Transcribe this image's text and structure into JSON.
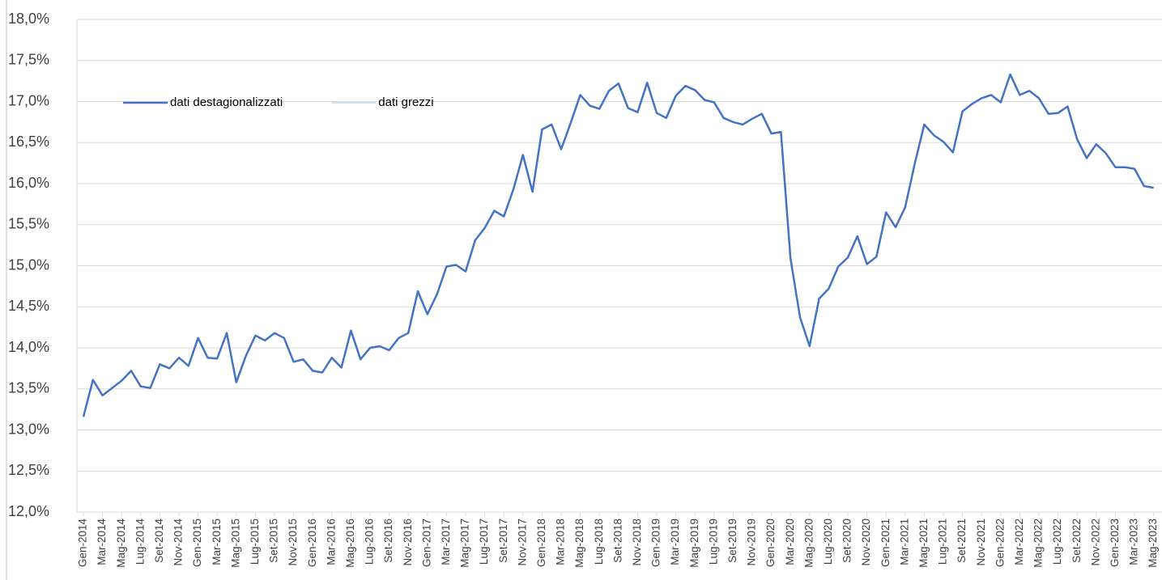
{
  "chart_data": {
    "type": "line",
    "categories": [
      "Gen-2014",
      null,
      "Mar-2014",
      null,
      "Mag-2014",
      null,
      "Lug-2014",
      null,
      "Set-2014",
      null,
      "Nov-2014",
      null,
      "Gen-2015",
      null,
      "Mar-2015",
      null,
      "Mag-2015",
      null,
      "Lug-2015",
      null,
      "Set-2015",
      null,
      "Nov-2015",
      null,
      "Gen-2016",
      null,
      "Mar-2016",
      null,
      "Mag-2016",
      null,
      "Lug-2016",
      null,
      "Set-2016",
      null,
      "Nov-2016",
      null,
      "Gen-2017",
      null,
      "Mar-2017",
      null,
      "Mag-2017",
      null,
      "Lug-2017",
      null,
      "Set-2017",
      null,
      "Nov-2017",
      null,
      "Gen-2018",
      null,
      "Mar-2018",
      null,
      "Mag-2018",
      null,
      "Lug-2018",
      null,
      "Set-2018",
      null,
      "Nov-2018",
      null,
      "Gen-2019",
      null,
      "Mar-2019",
      null,
      "Mag-2019",
      null,
      "Lug-2019",
      null,
      "Set-2019",
      null,
      "Nov-2019",
      null,
      "Gen-2020",
      null,
      "Mar-2020",
      null,
      "Mag-2020",
      null,
      "Lug-2020",
      null,
      "Set-2020",
      null,
      "Nov-2020",
      null,
      "Gen-2021",
      null,
      "Mar-2021",
      null,
      "Mag-2021",
      null,
      "Lug-2021",
      null,
      "Set-2021",
      null,
      "Nov-2021",
      null,
      "Gen-2022",
      null,
      "Mar-2022",
      null,
      "Mag-2022",
      null,
      "Lug-2022",
      null,
      "Set-2022",
      null,
      "Nov-2022",
      null,
      "Gen-2023",
      null,
      "Mar-2023",
      null,
      "Mag-2023"
    ],
    "series": [
      {
        "name": "dati destagionalizzati",
        "color": "#4472c4",
        "values": [
          13.16,
          13.61,
          13.42,
          13.51,
          13.6,
          13.72,
          13.53,
          13.51,
          13.8,
          13.75,
          13.88,
          13.78,
          14.12,
          13.88,
          13.87,
          14.18,
          13.58,
          13.9,
          14.15,
          14.09,
          14.18,
          14.12,
          13.83,
          13.86,
          13.72,
          13.7,
          13.88,
          13.76,
          14.21,
          13.86,
          14.0,
          14.02,
          13.97,
          14.12,
          14.18,
          14.69,
          14.41,
          14.65,
          14.99,
          15.01,
          14.93,
          15.31,
          15.46,
          15.67,
          15.6,
          15.93,
          16.35,
          15.9,
          16.66,
          16.72,
          16.42,
          16.74,
          17.08,
          16.95,
          16.91,
          17.13,
          17.22,
          16.92,
          16.87,
          17.23,
          16.86,
          16.8,
          17.07,
          17.19,
          17.14,
          17.02,
          16.99,
          16.8,
          16.75,
          16.72,
          16.79,
          16.85,
          16.61,
          16.63,
          15.09,
          14.37,
          14.02,
          14.6,
          14.72,
          14.99,
          15.1,
          15.36,
          15.02,
          15.11,
          15.65,
          15.47,
          15.71,
          16.24,
          16.72,
          16.59,
          16.51,
          16.38,
          16.88,
          16.97,
          17.04,
          17.08,
          16.99,
          17.33,
          17.08,
          17.13,
          17.04,
          16.85,
          16.86,
          16.94,
          16.54,
          16.31,
          16.48,
          16.37,
          16.2,
          16.2,
          16.18,
          15.97,
          15.95
        ]
      },
      {
        "name": "dati grezzi",
        "color": "#9dc3e6",
        "values": [
          null,
          null,
          null,
          null,
          null,
          null,
          null,
          null,
          null,
          null,
          null,
          null,
          null,
          null,
          null,
          null,
          null,
          null,
          null,
          null,
          null,
          null,
          null,
          null,
          null,
          null,
          null,
          null,
          null,
          null,
          null,
          null,
          null,
          null,
          null,
          null,
          null,
          null,
          null,
          null,
          null,
          null,
          null,
          null,
          null,
          null,
          null,
          null,
          null,
          null,
          null,
          null,
          null,
          null,
          null,
          null,
          null,
          null,
          null,
          null,
          null,
          null,
          null,
          null,
          null,
          null,
          null,
          null,
          null,
          null,
          null,
          null,
          null,
          null,
          null,
          null,
          null,
          null,
          null,
          null,
          null,
          null,
          null,
          null,
          null,
          null,
          null,
          null,
          null,
          null,
          null,
          null,
          null,
          null,
          null,
          null,
          null,
          null,
          null,
          null,
          null,
          null,
          null,
          null,
          null,
          null,
          null,
          null,
          null,
          null,
          null,
          null,
          null
        ]
      }
    ],
    "ylim": [
      12,
      18
    ],
    "yticks": [
      {
        "value": 12,
        "label": "12,0%"
      },
      {
        "value": 12.5,
        "label": "12,5%"
      },
      {
        "value": 13,
        "label": "13,0%"
      },
      {
        "value": 13.5,
        "label": "13,5%"
      },
      {
        "value": 14,
        "label": "14,0%"
      },
      {
        "value": 14.5,
        "label": "14,5%"
      },
      {
        "value": 15,
        "label": "15,0%"
      },
      {
        "value": 15.5,
        "label": "15,5%"
      },
      {
        "value": 16,
        "label": "16,0%"
      },
      {
        "value": 16.5,
        "label": "16,5%"
      },
      {
        "value": 17,
        "label": "17,0%"
      },
      {
        "value": 17.5,
        "label": "17,5%"
      },
      {
        "value": 18,
        "label": "18,0%"
      }
    ],
    "grid": true,
    "legend": "upper left"
  }
}
